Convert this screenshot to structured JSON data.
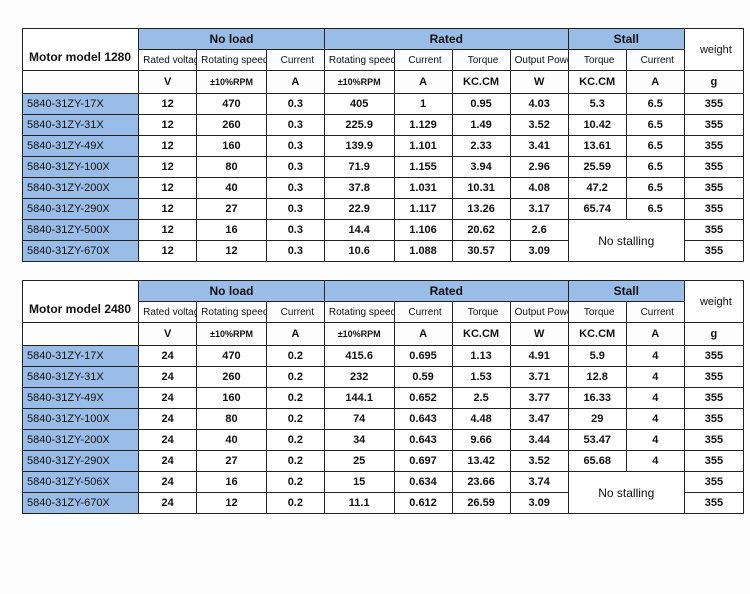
{
  "colors": {
    "header_bg": "#99bde6",
    "cell_bg": "#ffffff",
    "border": "#222222",
    "page_bg": "#fdfdfd"
  },
  "header": {
    "groups": {
      "noload": "No load",
      "rated": "Rated",
      "stall": "Stall"
    },
    "cols": {
      "rated_voltage": "Rated voltage",
      "rot_speed": "Rotating speed",
      "current": "Current",
      "torque": "Torque",
      "out_power": "Output Power",
      "weight": "weight"
    },
    "units": {
      "V": "V",
      "rpm": "±10%RPM",
      "A": "A",
      "kc": "KC.CM",
      "W": "W",
      "g": "g"
    }
  },
  "no_stalling_label": "No stalling",
  "tables": [
    {
      "title": "Motor model 1280",
      "rows": [
        {
          "m": "5840-31ZY-17X",
          "v": "12",
          "ns": "470",
          "nc": "0.3",
          "rs": "405",
          "rc": "1",
          "rt": "0.95",
          "rp": "4.03",
          "st": "5.3",
          "sc": "6.5",
          "w": "355"
        },
        {
          "m": "5840-31ZY-31X",
          "v": "12",
          "ns": "260",
          "nc": "0.3",
          "rs": "225.9",
          "rc": "1.129",
          "rt": "1.49",
          "rp": "3.52",
          "st": "10.42",
          "sc": "6.5",
          "w": "355"
        },
        {
          "m": "5840-31ZY-49X",
          "v": "12",
          "ns": "160",
          "nc": "0.3",
          "rs": "139.9",
          "rc": "1.101",
          "rt": "2.33",
          "rp": "3.41",
          "st": "13.61",
          "sc": "6.5",
          "w": "355"
        },
        {
          "m": "5840-31ZY-100X",
          "v": "12",
          "ns": "80",
          "nc": "0.3",
          "rs": "71.9",
          "rc": "1.155",
          "rt": "3.94",
          "rp": "2.96",
          "st": "25.59",
          "sc": "6.5",
          "w": "355"
        },
        {
          "m": "5840-31ZY-200X",
          "v": "12",
          "ns": "40",
          "nc": "0.3",
          "rs": "37.8",
          "rc": "1.031",
          "rt": "10.31",
          "rp": "4.08",
          "st": "47.2",
          "sc": "6.5",
          "w": "355"
        },
        {
          "m": "5840-31ZY-290X",
          "v": "12",
          "ns": "27",
          "nc": "0.3",
          "rs": "22.9",
          "rc": "1.117",
          "rt": "13.26",
          "rp": "3.17",
          "st": "65.74",
          "sc": "6.5",
          "w": "355"
        },
        {
          "m": "5840-31ZY-500X",
          "v": "12",
          "ns": "16",
          "nc": "0.3",
          "rs": "14.4",
          "rc": "1.106",
          "rt": "20.62",
          "rp": "2.6",
          "w": "355",
          "nostall": true
        },
        {
          "m": "5840-31ZY-670X",
          "v": "12",
          "ns": "12",
          "nc": "0.3",
          "rs": "10.6",
          "rc": "1.088",
          "rt": "30.57",
          "rp": "3.09",
          "w": "355",
          "nostall": true
        }
      ]
    },
    {
      "title": "Motor model 2480",
      "rows": [
        {
          "m": "5840-31ZY-17X",
          "v": "24",
          "ns": "470",
          "nc": "0.2",
          "rs": "415.6",
          "rc": "0.695",
          "rt": "1.13",
          "rp": "4.91",
          "st": "5.9",
          "sc": "4",
          "w": "355"
        },
        {
          "m": "5840-31ZY-31X",
          "v": "24",
          "ns": "260",
          "nc": "0.2",
          "rs": "232",
          "rc": "0.59",
          "rt": "1.53",
          "rp": "3.71",
          "st": "12.8",
          "sc": "4",
          "w": "355"
        },
        {
          "m": "5840-31ZY-49X",
          "v": "24",
          "ns": "160",
          "nc": "0.2",
          "rs": "144.1",
          "rc": "0.652",
          "rt": "2.5",
          "rp": "3.77",
          "st": "16.33",
          "sc": "4",
          "w": "355"
        },
        {
          "m": "5840-31ZY-100X",
          "v": "24",
          "ns": "80",
          "nc": "0.2",
          "rs": "74",
          "rc": "0.643",
          "rt": "4.48",
          "rp": "3.47",
          "st": "29",
          "sc": "4",
          "w": "355"
        },
        {
          "m": "5840-31ZY-200X",
          "v": "24",
          "ns": "40",
          "nc": "0.2",
          "rs": "34",
          "rc": "0.643",
          "rt": "9.66",
          "rp": "3.44",
          "st": "53.47",
          "sc": "4",
          "w": "355"
        },
        {
          "m": "5840-31ZY-290X",
          "v": "24",
          "ns": "27",
          "nc": "0.2",
          "rs": "25",
          "rc": "0.697",
          "rt": "13.42",
          "rp": "3.52",
          "st": "65.68",
          "sc": "4",
          "w": "355"
        },
        {
          "m": "5840-31ZY-506X",
          "v": "24",
          "ns": "16",
          "nc": "0.2",
          "rs": "15",
          "rc": "0.634",
          "rt": "23.66",
          "rp": "3.74",
          "w": "355",
          "nostall": true
        },
        {
          "m": "5840-31ZY-670X",
          "v": "24",
          "ns": "12",
          "nc": "0.2",
          "rs": "11.1",
          "rc": "0.612",
          "rt": "26.59",
          "rp": "3.09",
          "w": "355",
          "nostall": true
        }
      ]
    }
  ]
}
